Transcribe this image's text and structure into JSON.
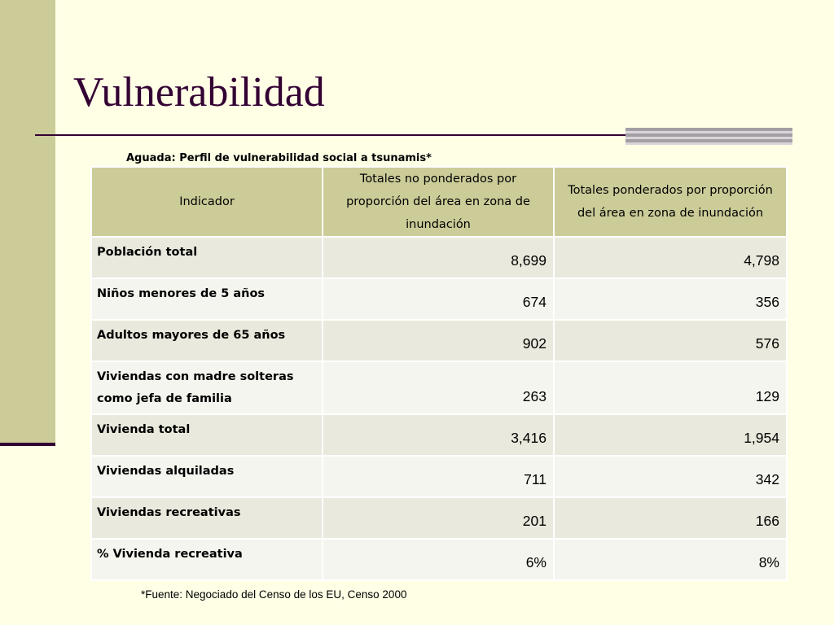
{
  "slide": {
    "title": "Vulnerabilidad",
    "caption": "Aguada: Perfil de vulnerabilidad social a tsunamis*",
    "source": "*Fuente: Negociado del Censo de los EU, Censo 2000"
  },
  "table": {
    "headers": [
      "Indicador",
      "Totales no ponderados por proporción del área en zona de inundación",
      "Totales ponderados por proporción del área en zona de inundación"
    ],
    "rows": [
      {
        "label": "Población total",
        "unweighted": "8,699",
        "weighted": "4,798"
      },
      {
        "label": "Niños menores de 5 años",
        "unweighted": "674",
        "weighted": "356"
      },
      {
        "label": "Adultos mayores de 65 años",
        "unweighted": "902",
        "weighted": "576"
      },
      {
        "label": "Viviendas con madre solteras como jefa de familia",
        "unweighted": "263",
        "weighted": "129"
      },
      {
        "label": "Vivienda total",
        "unweighted": "3,416",
        "weighted": "1,954"
      },
      {
        "label": "Viviendas alquiladas",
        "unweighted": "711",
        "weighted": "342"
      },
      {
        "label": "Viviendas recreativas",
        "unweighted": "201",
        "weighted": "166"
      },
      {
        "label": "% Vivienda recreativa",
        "unweighted": "6%",
        "weighted": "8%"
      }
    ]
  },
  "colors": {
    "background": "#ffffe6",
    "accent": "#cccc99",
    "title": "#330033",
    "row_odd": "#e9e9dd",
    "row_even": "#f5f5ef"
  }
}
